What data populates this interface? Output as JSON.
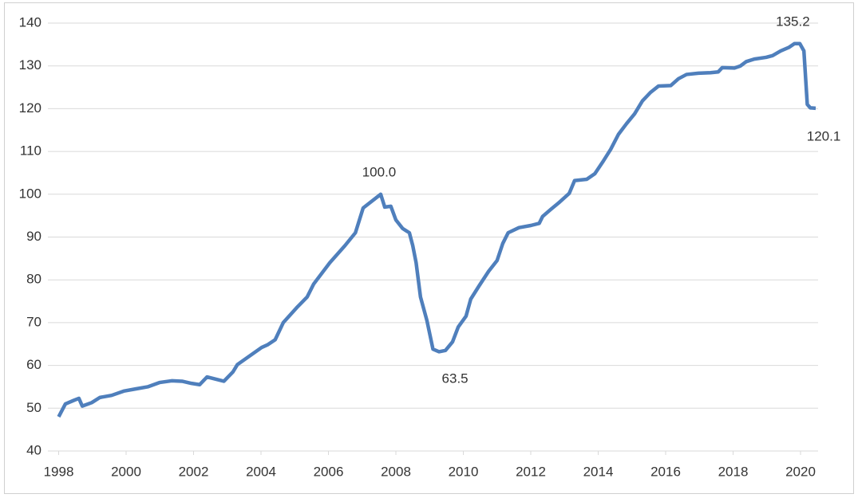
{
  "chart_data": {
    "type": "line",
    "x": [
      1998.0,
      1998.2,
      1998.44,
      1998.6,
      1998.7,
      1998.98,
      1999.22,
      1999.57,
      1999.93,
      2000.28,
      2000.64,
      2000.99,
      2001.35,
      2001.66,
      2001.94,
      2002.18,
      2002.4,
      2002.9,
      2003.17,
      2003.3,
      2004.02,
      2004.19,
      2004.42,
      2004.66,
      2005.06,
      2005.37,
      2005.56,
      2006.04,
      2006.49,
      2006.8,
      2007.03,
      2007.55,
      2007.67,
      2007.85,
      2008.0,
      2008.2,
      2008.4,
      2008.5,
      2008.6,
      2008.73,
      2008.92,
      2009.1,
      2009.28,
      2009.47,
      2009.68,
      2009.85,
      2010.08,
      2010.22,
      2010.46,
      2010.75,
      2011.0,
      2011.17,
      2011.33,
      2011.65,
      2012.0,
      2012.25,
      2012.35,
      2012.6,
      2012.83,
      2013.14,
      2013.3,
      2013.66,
      2013.9,
      2014.13,
      2014.37,
      2014.6,
      2014.84,
      2015.08,
      2015.31,
      2015.55,
      2015.79,
      2016.15,
      2016.38,
      2016.62,
      2016.97,
      2017.33,
      2017.56,
      2017.68,
      2018.04,
      2018.22,
      2018.39,
      2018.63,
      2018.98,
      2019.17,
      2019.41,
      2019.65,
      2019.82,
      2019.98,
      2020.1,
      2020.2,
      2020.29,
      2020.45
    ],
    "series": [
      {
        "color": "#4f7fbc",
        "values": [
          48,
          51,
          51.8,
          52.3,
          50.5,
          51.3,
          52.5,
          53,
          54,
          54.5,
          55,
          56,
          56.4,
          56.3,
          55.8,
          55.5,
          57.3,
          56.3,
          58.5,
          60.2,
          64.2,
          64.8,
          66,
          70,
          73.5,
          76,
          79,
          84,
          88,
          91,
          96.8,
          100.0,
          97,
          97.2,
          94,
          92,
          91,
          88,
          84,
          76,
          70.5,
          63.8,
          63.2,
          63.5,
          65.5,
          69,
          71.5,
          75.5,
          78.5,
          82,
          84.5,
          88.5,
          91,
          92.2,
          92.7,
          93.2,
          94.8,
          96.5,
          98,
          100.2,
          103.2,
          103.5,
          104.8,
          107.5,
          110.5,
          114,
          116.5,
          118.8,
          121.8,
          123.8,
          125.3,
          125.4,
          127,
          128,
          128.3,
          128.4,
          128.6,
          129.6,
          129.5,
          130,
          131,
          131.6,
          132,
          132.4,
          133.5,
          134.3,
          135.2,
          135.2,
          133.5,
          121,
          120.2,
          120.1
        ],
        "value_labels": [
          null,
          null,
          null,
          null,
          null,
          null,
          null,
          null,
          null,
          null,
          null,
          null,
          null,
          null,
          null,
          null,
          null,
          null,
          null,
          null,
          null,
          null,
          null,
          null,
          null,
          null,
          null,
          null,
          null,
          null,
          null,
          "100.0",
          null,
          null,
          null,
          null,
          null,
          null,
          null,
          null,
          null,
          null,
          null,
          "63.5",
          null,
          null,
          null,
          null,
          null,
          null,
          null,
          null,
          null,
          null,
          null,
          null,
          null,
          null,
          null,
          null,
          null,
          null,
          null,
          null,
          null,
          null,
          null,
          null,
          null,
          null,
          null,
          null,
          null,
          null,
          null,
          null,
          null,
          null,
          null,
          null,
          null,
          null,
          null,
          null,
          null,
          null,
          "135.2",
          null,
          null,
          null,
          null,
          "120.1"
        ]
      }
    ],
    "xlim": [
      1998,
      2020.6
    ],
    "xticks": [
      1998,
      2000,
      2002,
      2004,
      2006,
      2008,
      2010,
      2012,
      2014,
      2016,
      2018,
      2020
    ],
    "ylim": [
      40,
      140
    ],
    "yticks": [
      40,
      50,
      60,
      70,
      80,
      90,
      100,
      110,
      120,
      130,
      140
    ],
    "grid": true
  }
}
